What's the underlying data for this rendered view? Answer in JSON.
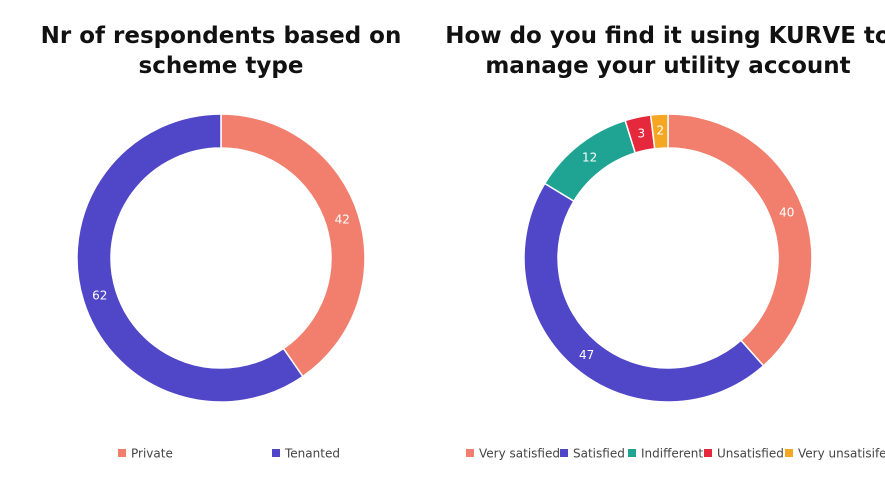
{
  "chart_data": [
    {
      "type": "donut",
      "title": [
        "Nr of respondents based on",
        "scheme type"
      ],
      "categories": [
        "Private",
        "Tenanted"
      ],
      "values": [
        42,
        62
      ],
      "colors": [
        "#f27f6d",
        "#4f46c8"
      ],
      "legend": "bottom"
    },
    {
      "type": "donut",
      "title": [
        "How do you find it using KURVE to",
        "manage your utility account"
      ],
      "categories": [
        "Very satisfied",
        "Satisfied",
        "Indifferent",
        "Unsatisfied",
        "Very unsatisifed"
      ],
      "values": [
        40,
        47,
        12,
        3,
        2
      ],
      "colors": [
        "#f27f6d",
        "#4f46c8",
        "#1fa393",
        "#e5283c",
        "#f5a623"
      ],
      "legend": "bottom"
    }
  ]
}
